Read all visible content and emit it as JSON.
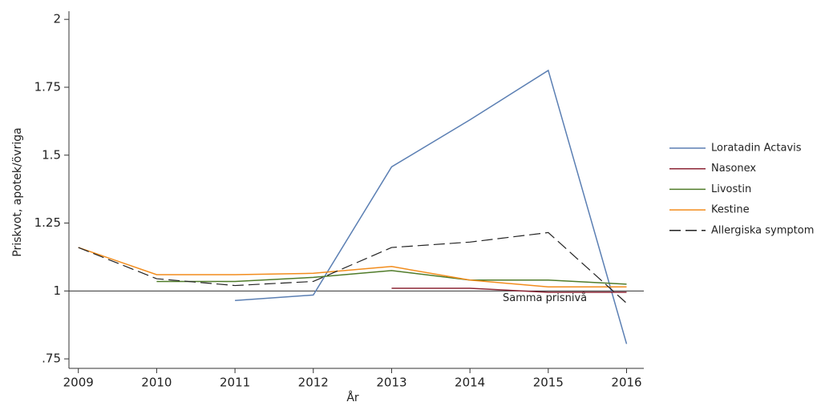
{
  "chart_data": {
    "type": "line",
    "x_label": "År",
    "y_label": "Priskvot, apotek/övriga",
    "x": [
      2009,
      2010,
      2011,
      2012,
      2013,
      2014,
      2015,
      2016
    ],
    "series": [
      {
        "name": "Loratadin Actavis",
        "color": "#5b7fb3",
        "dash": false,
        "values": [
          null,
          null,
          0.965,
          0.985,
          1.457,
          1.63,
          1.812,
          0.805
        ]
      },
      {
        "name": "Nasonex",
        "color": "#8c2535",
        "dash": false,
        "values": [
          null,
          null,
          null,
          null,
          1.01,
          1.01,
          0.995,
          0.995
        ]
      },
      {
        "name": "Livostin",
        "color": "#4f7b29",
        "dash": false,
        "values": [
          null,
          1.035,
          1.035,
          1.05,
          1.075,
          1.04,
          1.04,
          1.025
        ]
      },
      {
        "name": "Kestine",
        "color": "#f28c1c",
        "dash": false,
        "values": [
          1.16,
          1.06,
          1.06,
          1.065,
          1.09,
          1.04,
          1.015,
          1.015
        ]
      },
      {
        "name": "Allergiska symptom",
        "color": "#222222",
        "dash": true,
        "values": [
          1.16,
          1.045,
          1.02,
          1.035,
          1.16,
          1.18,
          1.215,
          0.955
        ]
      }
    ],
    "reference_line": {
      "value": 1,
      "label": "Samma prisnivå"
    },
    "xlim": [
      2008.88,
      2016.22
    ],
    "ylim": [
      0.715,
      2.03
    ],
    "xticks": [
      2009,
      2010,
      2011,
      2012,
      2013,
      2014,
      2015,
      2016
    ],
    "yticks": [
      {
        "value": 0.75,
        "label": ".75"
      },
      1,
      1.25,
      1.5,
      1.75,
      2
    ],
    "legend": "right"
  }
}
